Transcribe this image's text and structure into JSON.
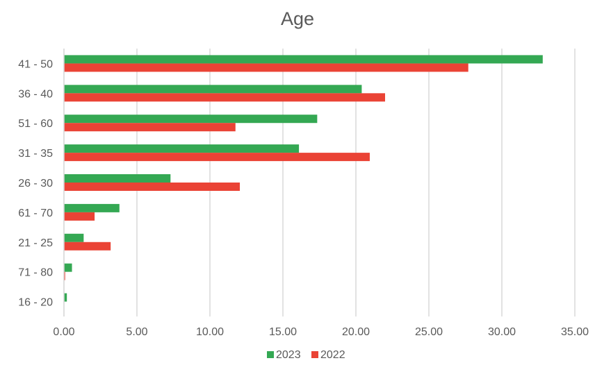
{
  "chart_data": {
    "type": "bar",
    "orientation": "horizontal",
    "title": "Age",
    "categories": [
      "41 - 50",
      "36 - 40",
      "51 - 60",
      "31 - 35",
      "26 - 30",
      "61 - 70",
      "21 - 25",
      "71 - 80",
      "16 - 20"
    ],
    "series": [
      {
        "name": "2023",
        "color": "#34a853",
        "values": [
          32.8,
          20.4,
          17.35,
          16.1,
          7.3,
          3.8,
          1.35,
          0.55,
          0.2
        ]
      },
      {
        "name": "2022",
        "color": "#ea4335",
        "values": [
          27.7,
          22.0,
          11.75,
          20.95,
          12.05,
          2.1,
          3.2,
          0.08,
          0
        ]
      }
    ],
    "xlim": [
      0,
      35
    ],
    "xticks": [
      "0.00",
      "5.00",
      "10.00",
      "15.00",
      "20.00",
      "25.00",
      "30.00",
      "35.00"
    ],
    "xtick_values": [
      0,
      5,
      10,
      15,
      20,
      25,
      30,
      35
    ],
    "grid": "vertical",
    "legend": "bottom"
  }
}
